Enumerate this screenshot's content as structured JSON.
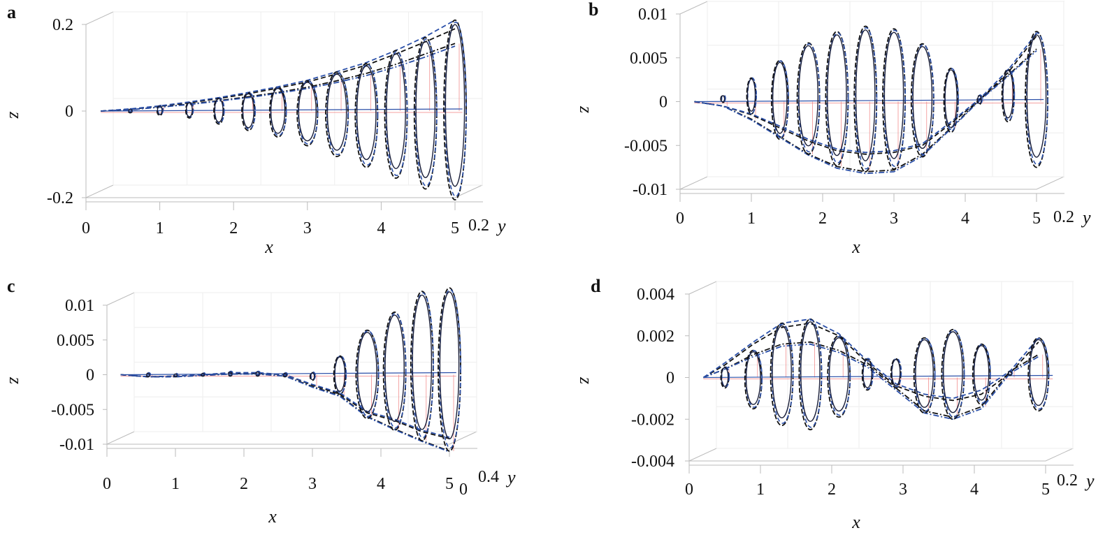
{
  "colors": {
    "black": "#111111",
    "blue": "#2a4fa8",
    "red": "#f08080",
    "frame": "#bbbbbb",
    "grid": "#eeeeee"
  },
  "chart_data": [
    {
      "panel": "a",
      "type": "line",
      "projection": "3d",
      "xlabel": "x",
      "ylabel": "y",
      "zlabel": "z",
      "xlim": [
        0,
        5
      ],
      "zlim": [
        -0.2,
        0.2
      ],
      "xticks": [
        "0",
        "1",
        "2",
        "3",
        "4",
        "5"
      ],
      "zticks": [
        "0.2",
        "0",
        "-0.2"
      ],
      "zticks_values": [
        0.2,
        0,
        -0.2
      ],
      "yticks": [
        "0.2"
      ],
      "rings": {
        "x": [
          0.6,
          1.0,
          1.4,
          1.8,
          2.2,
          2.6,
          3.0,
          3.4,
          3.8,
          4.2,
          4.6,
          5.0
        ],
        "top": [
          0.004,
          0.012,
          0.02,
          0.03,
          0.042,
          0.055,
          0.07,
          0.09,
          0.11,
          0.14,
          0.17,
          0.21
        ],
        "bottom": [
          -0.004,
          -0.01,
          -0.016,
          -0.03,
          -0.045,
          -0.06,
          -0.08,
          -0.105,
          -0.13,
          -0.155,
          -0.18,
          -0.205
        ]
      },
      "envelopes": [
        {
          "style": "dashed",
          "color": "black",
          "z": [
            0.004,
            0.011,
            0.019,
            0.029,
            0.04,
            0.053,
            0.067,
            0.086,
            0.106,
            0.132,
            0.16,
            0.19
          ]
        },
        {
          "style": "dashed",
          "color": "blue",
          "z": [
            0.005,
            0.012,
            0.021,
            0.031,
            0.043,
            0.056,
            0.071,
            0.091,
            0.112,
            0.14,
            0.172,
            0.21
          ]
        },
        {
          "style": "dashdot",
          "color": "black",
          "z": [
            0.003,
            0.009,
            0.016,
            0.024,
            0.033,
            0.043,
            0.055,
            0.07,
            0.087,
            0.108,
            0.132,
            0.156
          ]
        },
        {
          "style": "dashdot",
          "color": "blue",
          "z": [
            0.003,
            0.009,
            0.015,
            0.023,
            0.031,
            0.041,
            0.052,
            0.066,
            0.082,
            0.102,
            0.125,
            0.15
          ]
        }
      ]
    },
    {
      "panel": "b",
      "type": "line",
      "projection": "3d",
      "xlabel": "x",
      "ylabel": "y",
      "zlabel": "z",
      "xlim": [
        0,
        5
      ],
      "zlim": [
        -0.01,
        0.01
      ],
      "xticks": [
        "0",
        "1",
        "2",
        "3",
        "4",
        "5"
      ],
      "zticks": [
        "0.01",
        "0.005",
        "0",
        "-0.005",
        "-0.01"
      ],
      "zticks_values": [
        0.01,
        0.005,
        0,
        -0.005,
        -0.01
      ],
      "yticks": [
        "0.2"
      ],
      "rings": {
        "x": [
          0.6,
          1.0,
          1.4,
          1.8,
          2.2,
          2.6,
          3.0,
          3.4,
          3.8,
          4.2,
          4.6,
          5.0
        ],
        "top": [
          0.0007,
          0.0027,
          0.0047,
          0.0067,
          0.008,
          0.0086,
          0.0083,
          0.0066,
          0.0038,
          0.0007,
          0.0037,
          0.008
        ],
        "bottom": [
          -0.0001,
          -0.0014,
          -0.0043,
          -0.006,
          -0.0073,
          -0.008,
          -0.0077,
          -0.0063,
          -0.0035,
          -0.0003,
          -0.0023,
          -0.0075
        ]
      },
      "envelopes": [
        {
          "style": "dashed",
          "color": "black",
          "z": [
            -0.0005,
            -0.0015,
            -0.003,
            -0.0045,
            -0.0056,
            -0.006,
            -0.0058,
            -0.005,
            -0.0025,
            0.0002,
            0.0033,
            0.0075
          ]
        },
        {
          "style": "dashed",
          "color": "blue",
          "z": [
            -0.0005,
            -0.0014,
            -0.0028,
            -0.0043,
            -0.0054,
            -0.0058,
            -0.0056,
            -0.0048,
            -0.0023,
            0.0003,
            0.0036,
            0.0078
          ]
        },
        {
          "style": "dashdot",
          "color": "black",
          "z": [
            -0.0005,
            -0.002,
            -0.004,
            -0.006,
            -0.0074,
            -0.008,
            -0.0078,
            -0.006,
            -0.003,
            0.0002,
            0.003,
            0.006
          ]
        },
        {
          "style": "dashdot",
          "color": "blue",
          "z": [
            -0.0005,
            -0.0021,
            -0.0041,
            -0.0061,
            -0.0076,
            -0.0082,
            -0.008,
            -0.0062,
            -0.0031,
            0.0001,
            0.0029,
            0.0058
          ]
        }
      ]
    },
    {
      "panel": "c",
      "type": "line",
      "projection": "3d",
      "xlabel": "x",
      "ylabel": "y",
      "zlabel": "z",
      "xlim": [
        0,
        5
      ],
      "zlim": [
        -0.01,
        0.01
      ],
      "xticks": [
        "0",
        "1",
        "2",
        "3",
        "4",
        "5"
      ],
      "zticks": [
        "0.01",
        "0.005",
        "0",
        "-0.005",
        "-0.01"
      ],
      "zticks_values": [
        0.01,
        0.005,
        0,
        -0.005,
        -0.01
      ],
      "yticks": [
        "0",
        "0.4"
      ],
      "rings": {
        "x": [
          0.6,
          1.0,
          1.4,
          1.8,
          2.2,
          2.6,
          3.0,
          3.4,
          3.8,
          4.2,
          4.6,
          5.0
        ],
        "top": [
          0.0002,
          0.0001,
          0.0002,
          0.0004,
          0.0004,
          0.0002,
          0.0003,
          0.0027,
          0.0064,
          0.009,
          0.012,
          0.0125
        ],
        "bottom": [
          -0.0003,
          -0.0003,
          -0.0002,
          -0.0002,
          -0.0002,
          -0.0003,
          -0.0008,
          -0.0028,
          -0.0063,
          -0.008,
          -0.0095,
          -0.011
        ]
      },
      "envelopes": [
        {
          "style": "dashed",
          "color": "black",
          "z": [
            -0.0003,
            -0.0002,
            0,
            0.0002,
            0.0002,
            0,
            -0.0015,
            -0.0028,
            -0.0055,
            -0.0066,
            -0.0082,
            -0.0092
          ]
        },
        {
          "style": "dashed",
          "color": "blue",
          "z": [
            -0.0003,
            -0.0002,
            0,
            0.0003,
            0.0003,
            0,
            -0.0014,
            -0.0026,
            -0.0053,
            -0.0064,
            -0.008,
            -0.009
          ]
        },
        {
          "style": "dashdot",
          "color": "black",
          "z": [
            -0.0003,
            -0.0003,
            -0.0001,
            0.0001,
            0.0001,
            -0.0002,
            -0.0017,
            -0.003,
            -0.006,
            -0.0078,
            -0.0095,
            -0.011
          ]
        },
        {
          "style": "dashdot",
          "color": "blue",
          "z": [
            -0.0003,
            -0.0003,
            -0.0001,
            0.0001,
            0.0001,
            -0.0002,
            -0.0018,
            -0.0031,
            -0.0061,
            -0.0079,
            -0.0096,
            -0.0111
          ]
        }
      ]
    },
    {
      "panel": "d",
      "type": "line",
      "projection": "3d",
      "xlabel": "x",
      "ylabel": "y",
      "zlabel": "z",
      "xlim": [
        0,
        5
      ],
      "zlim": [
        -0.004,
        0.004
      ],
      "xticks": [
        "0",
        "1",
        "2",
        "3",
        "4",
        "5"
      ],
      "zticks": [
        "0.004",
        "0.002",
        "0",
        "-0.002",
        "-0.004"
      ],
      "zticks_values": [
        0.004,
        0.002,
        0,
        -0.002,
        -0.004
      ],
      "yticks": [
        "0.2"
      ],
      "rings": {
        "x": [
          0.5,
          0.9,
          1.3,
          1.7,
          2.1,
          2.5,
          2.9,
          3.3,
          3.7,
          4.1,
          4.5,
          4.9
        ],
        "top": [
          0.0005,
          0.0013,
          0.0026,
          0.0028,
          0.002,
          0.0009,
          0.0009,
          0.0019,
          0.0023,
          0.0016,
          0.0003,
          0.0019
        ],
        "bottom": [
          -0.0005,
          -0.0015,
          -0.0023,
          -0.0025,
          -0.0019,
          -0.0006,
          -0.0005,
          -0.0017,
          -0.002,
          -0.0013,
          0.0001,
          -0.0016
        ]
      },
      "envelopes": [
        {
          "style": "dashed",
          "color": "black",
          "z": [
            0.0006,
            0.0016,
            0.0024,
            0.0026,
            0.002,
            0.0007,
            -0.0004,
            -0.0009,
            -0.0011,
            -0.0008,
            0.0002,
            0.0017
          ]
        },
        {
          "style": "dashed",
          "color": "blue",
          "z": [
            0.0007,
            0.0017,
            0.0026,
            0.0028,
            0.0021,
            0.0008,
            -0.0003,
            -0.0008,
            -0.001,
            -0.0006,
            0.0003,
            0.0019
          ]
        },
        {
          "style": "dashdot",
          "color": "black",
          "z": [
            0.0004,
            0.0011,
            0.0016,
            0.0017,
            0.0013,
            0.0006,
            -0.0005,
            -0.0016,
            -0.0019,
            -0.0014,
            0.0003,
            0.0011
          ]
        },
        {
          "style": "dashdot",
          "color": "blue",
          "z": [
            0.0004,
            0.001,
            0.0015,
            0.0016,
            0.0012,
            0.0005,
            -0.0006,
            -0.0017,
            -0.002,
            -0.0015,
            0.0002,
            0.001
          ]
        }
      ]
    }
  ]
}
